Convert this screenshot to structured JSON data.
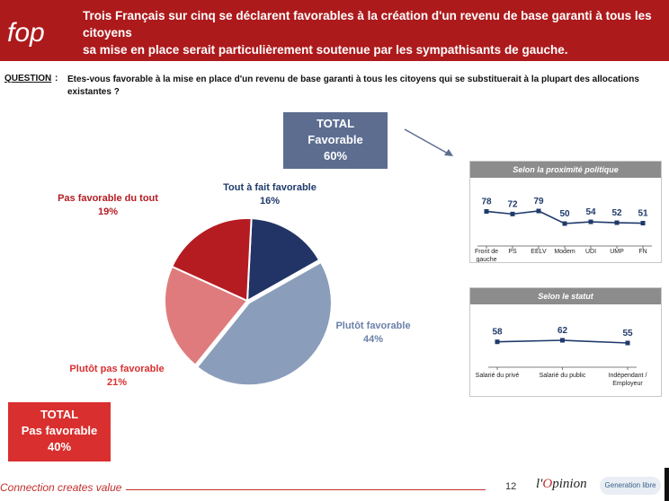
{
  "header": {
    "logo_text": "fop",
    "title": "Trois Français sur cinq se déclarent favorables à la création d'un revenu de base garanti à tous les citoyens\nsa mise en place serait particulièrement soutenue par les sympathisants de gauche."
  },
  "question": {
    "label": "QUESTION",
    "colon": ":",
    "text": "Etes-vous favorable à la mise en place d'un revenu de base garanti à tous les citoyens qui se substituerait à la plupart des allocations existantes ?"
  },
  "totals": {
    "favorable": {
      "line1": "TOTAL",
      "line2": "Favorable",
      "line3": "60%"
    },
    "unfavorable": {
      "line1": "TOTAL",
      "line2": "Pas favorable",
      "line3": "40%"
    }
  },
  "chart_data": [
    {
      "type": "pie",
      "slices": [
        {
          "label": "Tout à fait favorable",
          "value": 16,
          "value_label": "16%",
          "color": "#223366"
        },
        {
          "label": "Plutôt favorable",
          "value": 44,
          "value_label": "44%",
          "color": "#8a9dba"
        },
        {
          "label": "Plutôt pas favorable",
          "value": 21,
          "value_label": "21%",
          "color": "#e07b7d"
        },
        {
          "label": "Pas favorable du tout",
          "value": 19,
          "value_label": "19%",
          "color": "#b51c22"
        }
      ]
    },
    {
      "type": "line",
      "title": "Selon la proximité politique",
      "categories": [
        "Front de gauche",
        "PS",
        "EELV",
        "Modem",
        "UDI",
        "UMP",
        "FN"
      ],
      "values": [
        78,
        72,
        79,
        50,
        54,
        52,
        51
      ],
      "ylim": [
        0,
        100
      ],
      "color": "#1f3a6b"
    },
    {
      "type": "line",
      "title": "Selon le statut",
      "categories": [
        "Salarié du privé",
        "Salarié du public",
        "Indépendant / Employeur"
      ],
      "values": [
        58,
        62,
        55
      ],
      "ylim": [
        0,
        100
      ],
      "color": "#1f3a6b"
    }
  ],
  "footer": {
    "tagline": "Connection creates value",
    "page": "12",
    "brand1_prefix": "l'",
    "brand1_o": "O",
    "brand1_rest": "pinion",
    "brand2": "Generation libre"
  }
}
